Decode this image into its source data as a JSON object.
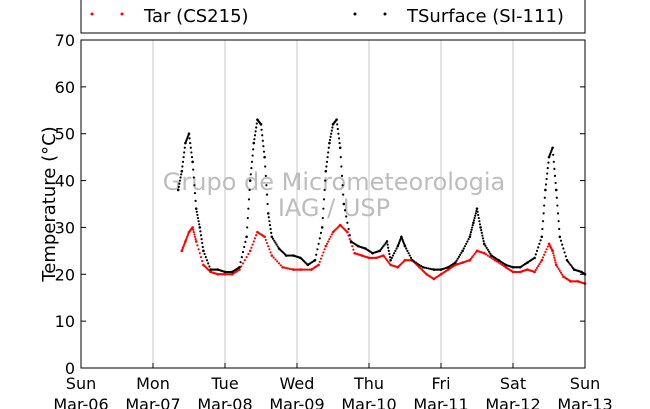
{
  "chart_data": {
    "type": "scatter",
    "title": "",
    "xlabel": "",
    "ylabel": "Temperature (°C)",
    "ylim": [
      0,
      70
    ],
    "yticks": [
      0,
      10,
      20,
      30,
      40,
      50,
      60,
      70
    ],
    "xlim": [
      "2015-03-06",
      "2015-03-13"
    ],
    "xticks": [
      {
        "day": "Sun",
        "date": "Mar-06"
      },
      {
        "day": "Mon",
        "date": "Mar-07"
      },
      {
        "day": "Tue",
        "date": "Mar-08"
      },
      {
        "day": "Wed",
        "date": "Mar-09"
      },
      {
        "day": "Thu",
        "date": "Mar-10"
      },
      {
        "day": "Fri",
        "date": "Mar-11"
      },
      {
        "day": "Sat",
        "date": "Mar-12"
      },
      {
        "day": "Sun",
        "date": "Mar-13"
      }
    ],
    "grid": "vertical",
    "legend_placement": "top",
    "watermark": [
      "Grupo de Micrometeorologia",
      "IAG / USP"
    ],
    "series": [
      {
        "name": "Tar (CS215)",
        "color": "#ff0000",
        "points": [
          [
            1.4,
            25
          ],
          [
            1.45,
            27
          ],
          [
            1.5,
            29
          ],
          [
            1.55,
            30
          ],
          [
            1.6,
            27
          ],
          [
            1.7,
            22
          ],
          [
            1.8,
            20.5
          ],
          [
            1.9,
            20
          ],
          [
            2.0,
            20
          ],
          [
            2.1,
            20
          ],
          [
            2.2,
            21
          ],
          [
            2.35,
            25
          ],
          [
            2.45,
            29
          ],
          [
            2.55,
            28
          ],
          [
            2.65,
            24
          ],
          [
            2.8,
            21.5
          ],
          [
            2.95,
            21
          ],
          [
            3.05,
            21
          ],
          [
            3.2,
            21
          ],
          [
            3.3,
            22
          ],
          [
            3.4,
            26
          ],
          [
            3.5,
            29
          ],
          [
            3.6,
            30.5
          ],
          [
            3.7,
            29
          ],
          [
            3.8,
            24.5
          ],
          [
            3.9,
            24
          ],
          [
            4.0,
            23.5
          ],
          [
            4.1,
            23.5
          ],
          [
            4.2,
            24
          ],
          [
            4.3,
            22
          ],
          [
            4.4,
            21.5
          ],
          [
            4.5,
            23
          ],
          [
            4.6,
            23
          ],
          [
            4.7,
            21.5
          ],
          [
            4.8,
            20
          ],
          [
            4.9,
            19
          ],
          [
            5.0,
            20
          ],
          [
            5.1,
            21
          ],
          [
            5.2,
            22
          ],
          [
            5.3,
            22.5
          ],
          [
            5.4,
            23
          ],
          [
            5.5,
            25
          ],
          [
            5.6,
            24.5
          ],
          [
            5.75,
            23
          ],
          [
            5.9,
            21.5
          ],
          [
            6.0,
            20.5
          ],
          [
            6.1,
            20.5
          ],
          [
            6.2,
            21
          ],
          [
            6.3,
            20.5
          ],
          [
            6.4,
            23
          ],
          [
            6.5,
            26.5
          ],
          [
            6.55,
            25
          ],
          [
            6.6,
            22
          ],
          [
            6.7,
            19.5
          ],
          [
            6.8,
            18.5
          ],
          [
            6.9,
            18.5
          ],
          [
            7.0,
            18
          ]
        ]
      },
      {
        "name": "TSurface (SI-111)",
        "color": "#000000",
        "points": [
          [
            1.35,
            38
          ],
          [
            1.4,
            42
          ],
          [
            1.45,
            48
          ],
          [
            1.5,
            50
          ],
          [
            1.55,
            44
          ],
          [
            1.6,
            34
          ],
          [
            1.65,
            30
          ],
          [
            1.7,
            25
          ],
          [
            1.8,
            21
          ],
          [
            1.9,
            21
          ],
          [
            2.0,
            20.5
          ],
          [
            2.1,
            20.5
          ],
          [
            2.2,
            21.5
          ],
          [
            2.3,
            28
          ],
          [
            2.35,
            40
          ],
          [
            2.4,
            48
          ],
          [
            2.45,
            53
          ],
          [
            2.5,
            52
          ],
          [
            2.55,
            45
          ],
          [
            2.6,
            33
          ],
          [
            2.65,
            28
          ],
          [
            2.75,
            25.5
          ],
          [
            2.85,
            24
          ],
          [
            2.95,
            24
          ],
          [
            3.05,
            23.5
          ],
          [
            3.15,
            22
          ],
          [
            3.25,
            23
          ],
          [
            3.35,
            30
          ],
          [
            3.4,
            42
          ],
          [
            3.45,
            48
          ],
          [
            3.5,
            52
          ],
          [
            3.55,
            53
          ],
          [
            3.6,
            47
          ],
          [
            3.65,
            35
          ],
          [
            3.75,
            27
          ],
          [
            3.85,
            26
          ],
          [
            3.95,
            25.5
          ],
          [
            4.05,
            24.5
          ],
          [
            4.15,
            25
          ],
          [
            4.25,
            27
          ],
          [
            4.3,
            23
          ],
          [
            4.4,
            26
          ],
          [
            4.45,
            28
          ],
          [
            4.5,
            26
          ],
          [
            4.6,
            23
          ],
          [
            4.75,
            21.5
          ],
          [
            4.9,
            21
          ],
          [
            5.0,
            21
          ],
          [
            5.1,
            21.5
          ],
          [
            5.2,
            22.5
          ],
          [
            5.3,
            25
          ],
          [
            5.4,
            28
          ],
          [
            5.45,
            31
          ],
          [
            5.5,
            34
          ],
          [
            5.55,
            30
          ],
          [
            5.6,
            26.5
          ],
          [
            5.7,
            24
          ],
          [
            5.8,
            23
          ],
          [
            5.9,
            22
          ],
          [
            6.0,
            21.5
          ],
          [
            6.1,
            21.5
          ],
          [
            6.2,
            22.5
          ],
          [
            6.3,
            23.5
          ],
          [
            6.4,
            28
          ],
          [
            6.45,
            38
          ],
          [
            6.5,
            45
          ],
          [
            6.55,
            47
          ],
          [
            6.6,
            38
          ],
          [
            6.65,
            28
          ],
          [
            6.75,
            23
          ],
          [
            6.85,
            21
          ],
          [
            6.95,
            20.5
          ],
          [
            7.0,
            20
          ]
        ]
      }
    ]
  }
}
